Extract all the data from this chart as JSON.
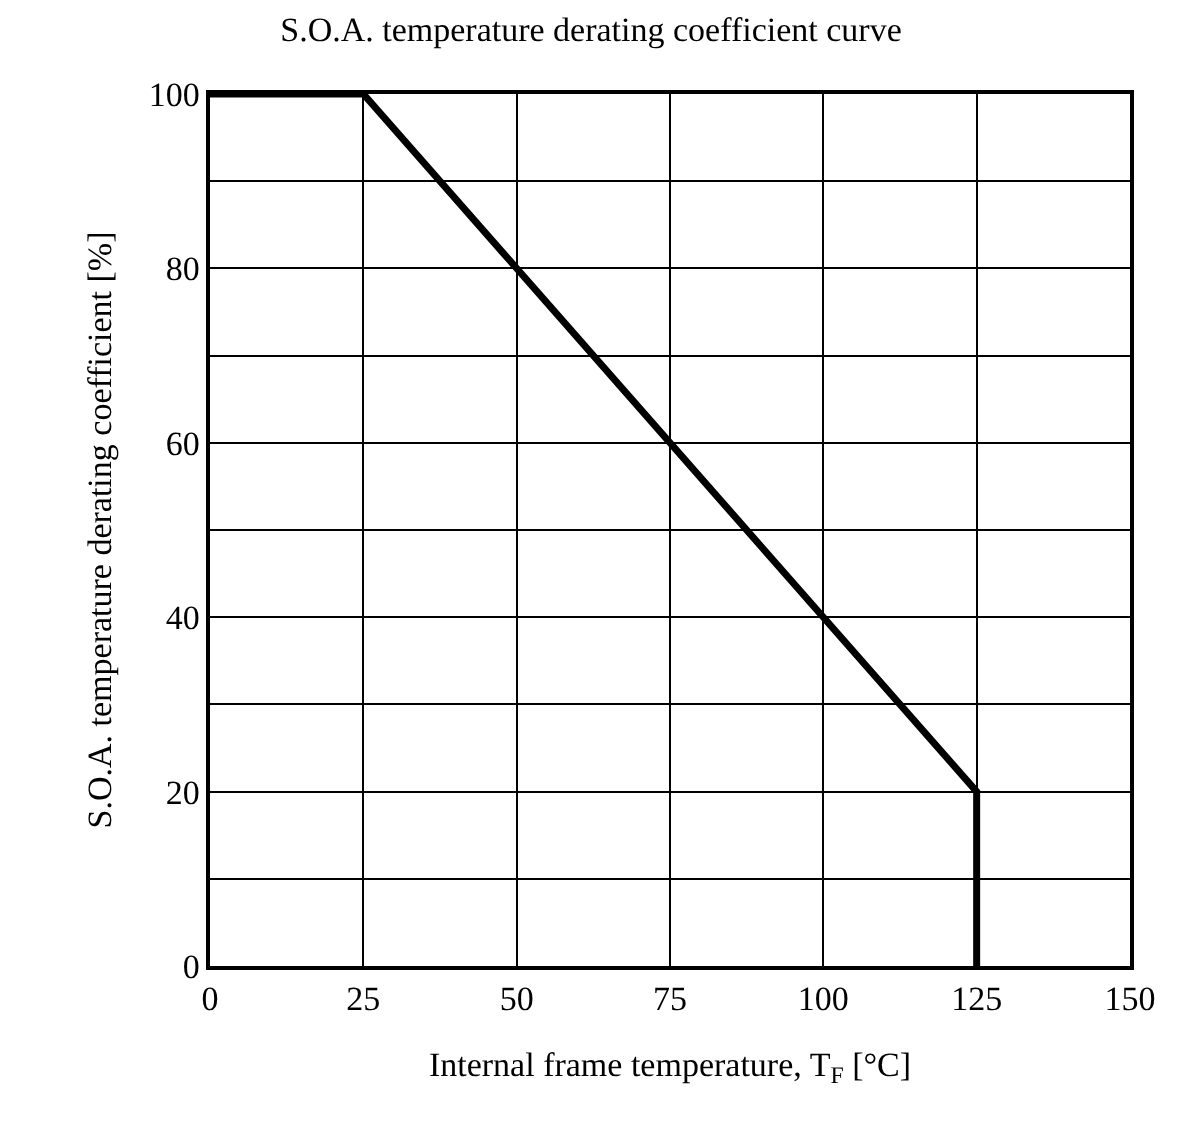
{
  "chart_data": {
    "type": "line",
    "title": "S.O.A. temperature derating coefficient curve",
    "xlabel": "Internal frame temperature, T$_{F}$ [°C]",
    "ylabel": "S.O.A. temperature derating coefficient [%]",
    "x": [
      0,
      25,
      125,
      125
    ],
    "series": [
      {
        "color": "#000000",
        "values": [
          100,
          100,
          20,
          0
        ]
      }
    ],
    "xlim": [
      0,
      150
    ],
    "xticks": [
      0,
      25,
      50,
      75,
      100,
      125,
      150
    ],
    "ylim": [
      0,
      100
    ],
    "yticks": [
      0,
      {
        "value": 10,
        "label": null
      },
      20,
      {
        "value": 30,
        "label": null
      },
      40,
      {
        "value": 50,
        "label": null
      },
      60,
      {
        "value": 70,
        "label": null
      },
      80,
      {
        "value": 90,
        "label": null
      },
      100
    ],
    "grid": true,
    "marker": "none",
    "line_style": "solid"
  }
}
